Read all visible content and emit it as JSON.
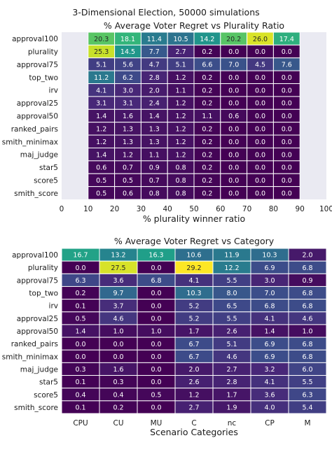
{
  "suptitle": "3-Dimensional Election, 50000 simulations",
  "chart_data": [
    {
      "type": "heatmap",
      "title": "% Average Voter Regret vs Plurality Ratio",
      "xlabel": "% plurality winner ratio",
      "ylabel": "",
      "x_tick_labels": [
        "0",
        "10",
        "20",
        "30",
        "40",
        "50",
        "60",
        "70",
        "80",
        "90",
        "100"
      ],
      "xlim": [
        0,
        100
      ],
      "x_bins": [
        [
          10,
          20
        ],
        [
          20,
          30
        ],
        [
          30,
          40
        ],
        [
          40,
          50
        ],
        [
          50,
          60
        ],
        [
          60,
          70
        ],
        [
          70,
          80
        ],
        [
          80,
          90
        ]
      ],
      "rows": [
        "approval100",
        "plurality",
        "approval75",
        "top_two",
        "irv",
        "approval25",
        "approval50",
        "ranked_pairs",
        "smith_minimax",
        "maj_judge",
        "star5",
        "score5",
        "smith_score"
      ],
      "values": [
        [
          20.3,
          18.1,
          11.4,
          10.5,
          14.2,
          20.2,
          26.0,
          17.4
        ],
        [
          25.3,
          14.5,
          7.7,
          2.7,
          0.2,
          0.0,
          0.0,
          0.0
        ],
        [
          5.1,
          5.6,
          4.7,
          5.1,
          6.6,
          7.0,
          4.5,
          7.6
        ],
        [
          11.2,
          6.2,
          2.8,
          1.2,
          0.2,
          0.0,
          0.0,
          0.0
        ],
        [
          4.1,
          3.0,
          2.0,
          1.1,
          0.2,
          0.0,
          0.0,
          0.0
        ],
        [
          3.1,
          3.1,
          2.4,
          1.2,
          0.2,
          0.0,
          0.0,
          0.0
        ],
        [
          1.4,
          1.6,
          1.4,
          1.2,
          1.1,
          0.6,
          0.0,
          0.0
        ],
        [
          1.2,
          1.3,
          1.3,
          1.2,
          0.2,
          0.0,
          0.0,
          0.0
        ],
        [
          1.2,
          1.3,
          1.3,
          1.2,
          0.2,
          0.0,
          0.0,
          0.0
        ],
        [
          1.4,
          1.2,
          1.1,
          1.2,
          0.2,
          0.0,
          0.0,
          0.0
        ],
        [
          0.6,
          0.7,
          0.9,
          0.8,
          0.2,
          0.0,
          0.0,
          0.0
        ],
        [
          0.5,
          0.5,
          0.7,
          0.8,
          0.2,
          0.0,
          0.0,
          0.0
        ],
        [
          0.5,
          0.6,
          0.8,
          0.8,
          0.2,
          0.0,
          0.0,
          0.0
        ]
      ],
      "color_range": [
        0,
        27.5
      ],
      "colormap": "viridis"
    },
    {
      "type": "heatmap",
      "title": "% Average Voter Regret vs Category",
      "xlabel": "Scenario Categories",
      "ylabel": "",
      "categories": [
        "CPU",
        "CU",
        "MU",
        "C",
        "nc",
        "CP",
        "M"
      ],
      "rows": [
        "approval100",
        "plurality",
        "approval75",
        "top_two",
        "irv",
        "approval25",
        "approval50",
        "ranked_pairs",
        "smith_minimax",
        "maj_judge",
        "star5",
        "score5",
        "smith_score"
      ],
      "values": [
        [
          16.7,
          13.2,
          16.3,
          10.6,
          11.9,
          10.3,
          2.0
        ],
        [
          0.0,
          27.5,
          0.0,
          29.2,
          12.2,
          6.9,
          6.8
        ],
        [
          6.3,
          3.6,
          6.8,
          4.1,
          5.5,
          3.0,
          0.9
        ],
        [
          0.2,
          9.7,
          0.0,
          10.3,
          8.0,
          7.0,
          6.8
        ],
        [
          0.1,
          3.7,
          0.0,
          5.2,
          6.5,
          6.8,
          6.8
        ],
        [
          0.5,
          4.6,
          0.0,
          5.2,
          5.5,
          4.1,
          4.6
        ],
        [
          1.4,
          1.0,
          1.0,
          1.7,
          2.6,
          1.4,
          1.0
        ],
        [
          0.0,
          0.0,
          0.0,
          6.7,
          5.1,
          6.9,
          6.8
        ],
        [
          0.0,
          0.0,
          0.0,
          6.7,
          4.6,
          6.9,
          6.8
        ],
        [
          0.3,
          1.6,
          0.0,
          2.0,
          2.7,
          3.2,
          6.0
        ],
        [
          0.1,
          0.3,
          0.0,
          2.6,
          2.8,
          4.1,
          5.5
        ],
        [
          0.4,
          0.4,
          0.5,
          1.2,
          1.7,
          3.6,
          6.3
        ],
        [
          0.1,
          0.2,
          0.0,
          2.7,
          1.9,
          4.0,
          5.4
        ]
      ],
      "color_range": [
        0,
        29.2
      ],
      "colormap": "viridis"
    }
  ]
}
